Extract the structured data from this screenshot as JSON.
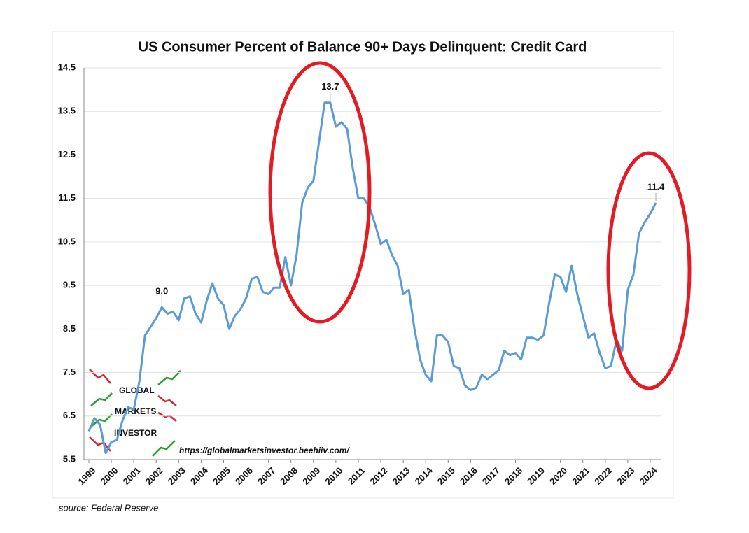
{
  "chart_data": {
    "type": "line",
    "title": "US Consumer Percent of Balance 90+ Days Delinquent: Credit Card",
    "source": "source: Federal Reserve",
    "watermark": [
      "GLOBAL",
      "MARKETS",
      "INVESTOR"
    ],
    "url": "https://globalmarketsinvestor.beehiiv.com/",
    "x": [
      1999,
      1999.25,
      1999.5,
      1999.75,
      2000,
      2000.25,
      2000.5,
      2000.75,
      2001,
      2001.25,
      2001.5,
      2001.75,
      2002,
      2002.25,
      2002.5,
      2002.75,
      2003,
      2003.25,
      2003.5,
      2003.75,
      2004,
      2004.25,
      2004.5,
      2004.75,
      2005,
      2005.25,
      2005.5,
      2005.75,
      2006,
      2006.25,
      2006.5,
      2006.75,
      2007,
      2007.25,
      2007.5,
      2007.75,
      2008,
      2008.25,
      2008.5,
      2008.75,
      2009,
      2009.25,
      2009.5,
      2009.75,
      2010,
      2010.25,
      2010.5,
      2010.75,
      2011,
      2011.25,
      2011.5,
      2011.75,
      2012,
      2012.25,
      2012.5,
      2012.75,
      2013,
      2013.25,
      2013.5,
      2013.75,
      2014,
      2014.25,
      2014.5,
      2014.75,
      2015,
      2015.25,
      2015.5,
      2015.75,
      2016,
      2016.25,
      2016.5,
      2016.75,
      2017,
      2017.25,
      2017.5,
      2017.75,
      2018,
      2018.25,
      2018.5,
      2018.75,
      2019,
      2019.25,
      2019.5,
      2019.75,
      2020,
      2020.25,
      2020.5,
      2020.75,
      2021,
      2021.25,
      2021.5,
      2021.75,
      2022,
      2022.25,
      2022.5,
      2022.75,
      2023,
      2023.25,
      2023.5,
      2023.75,
      2024,
      2024.25
    ],
    "series": [
      {
        "name": "Credit Card",
        "color": "#5b9bd5",
        "values": [
          6.15,
          6.45,
          6.3,
          5.65,
          5.9,
          5.95,
          6.4,
          6.7,
          6.65,
          7.3,
          8.35,
          8.55,
          8.75,
          9.0,
          8.85,
          8.9,
          8.7,
          9.2,
          9.25,
          8.85,
          8.65,
          9.15,
          9.55,
          9.2,
          9.05,
          8.5,
          8.8,
          8.95,
          9.2,
          9.65,
          9.7,
          9.35,
          9.3,
          9.45,
          9.45,
          10.15,
          9.5,
          10.2,
          11.4,
          11.75,
          11.9,
          12.8,
          13.7,
          13.7,
          13.15,
          13.25,
          13.1,
          12.2,
          11.5,
          11.5,
          11.3,
          10.9,
          10.45,
          10.55,
          10.2,
          9.95,
          9.3,
          9.4,
          8.5,
          7.8,
          7.45,
          7.3,
          8.35,
          8.35,
          8.2,
          7.65,
          7.6,
          7.2,
          7.1,
          7.15,
          7.45,
          7.35,
          7.45,
          7.55,
          8.0,
          7.9,
          7.95,
          7.8,
          8.3,
          8.3,
          8.25,
          8.35,
          9.1,
          9.75,
          9.7,
          9.35,
          9.95,
          9.3,
          8.8,
          8.3,
          8.4,
          7.95,
          7.6,
          7.65,
          8.25,
          8.0,
          9.4,
          9.75,
          10.7,
          10.95,
          11.15,
          11.4
        ]
      }
    ],
    "annotations": [
      {
        "text": "9.0",
        "x": 2002.25,
        "y": 9.0
      },
      {
        "text": "13.7",
        "x": 2009.75,
        "y": 13.7
      },
      {
        "text": "11.4",
        "x": 2024.25,
        "y": 11.4
      }
    ],
    "xlim": [
      1999,
      2024.25
    ],
    "xticks": [
      1999,
      2000,
      2001,
      2002,
      2003,
      2004,
      2005,
      2006,
      2007,
      2008,
      2009,
      2010,
      2011,
      2012,
      2013,
      2014,
      2015,
      2016,
      2017,
      2018,
      2019,
      2020,
      2021,
      2022,
      2023,
      2024
    ],
    "ylim": [
      5.5,
      14.5
    ],
    "yticks": [
      5.5,
      6.5,
      7.5,
      8.5,
      9.5,
      10.5,
      11.5,
      12.5,
      13.5,
      14.5
    ],
    "grid": true
  }
}
